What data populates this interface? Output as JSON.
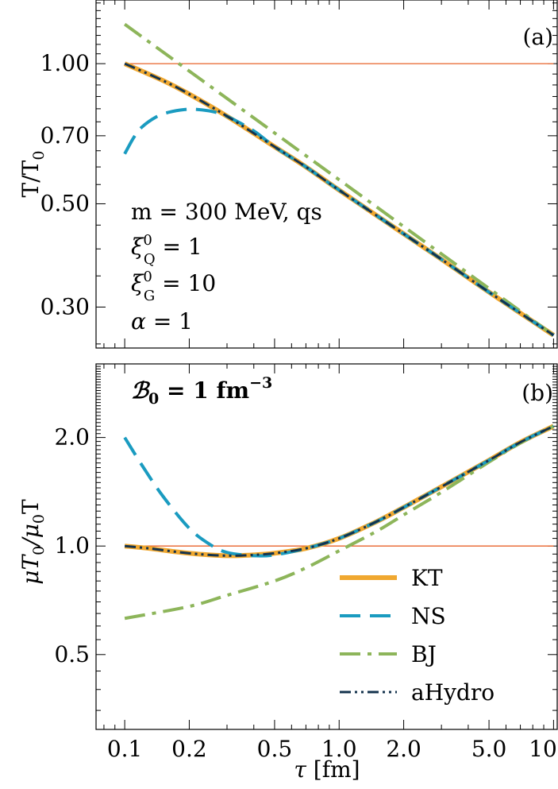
{
  "chart_data": [
    {
      "panel_label": "(a)",
      "type": "line",
      "xscale": "log",
      "yscale": "log",
      "xlim": [
        0.0735,
        10.4
      ],
      "ylim": [
        0.245,
        1.37
      ],
      "xticks": [
        0.1,
        0.2,
        0.5,
        1.0,
        2.0,
        5.0,
        10.0
      ],
      "xtick_labels": [
        "0.1",
        "0.2",
        "0.5",
        "1.0",
        "2.0",
        "5.0",
        "10.0"
      ],
      "yticks": [
        0.3,
        0.5,
        0.7,
        1.0
      ],
      "ytick_labels": [
        "0.30",
        "0.50",
        "0.70",
        "1.00"
      ],
      "ylabel": {
        "main": "T/T",
        "sub": "0"
      },
      "annotations": [
        {
          "text": "m = 300 MeV, qs"
        },
        {
          "base": "ξ",
          "sup": "0",
          "sub": "Q",
          "rest": " = 1"
        },
        {
          "base": "ξ",
          "sup": "0",
          "sub": "G",
          "rest": " = 10"
        },
        {
          "base": "α",
          "rest": " = 1"
        }
      ],
      "reference_line": {
        "y": 1.0,
        "color": "#e8622a"
      },
      "series": [
        {
          "key": "KT",
          "color": "#f0a830",
          "x": [
            0.1,
            0.15,
            0.2,
            0.3,
            0.5,
            0.7,
            1.0,
            2.0,
            3.0,
            5.0,
            10.0
          ],
          "y": [
            1.0,
            0.921,
            0.86,
            0.771,
            0.663,
            0.6,
            0.535,
            0.431,
            0.38,
            0.323,
            0.261
          ]
        },
        {
          "key": "NS",
          "color": "#1a9bc0",
          "x": [
            0.1,
            0.11,
            0.12,
            0.14,
            0.16,
            0.19,
            0.22,
            0.26,
            0.3,
            0.4,
            0.5,
            0.7,
            1.0,
            2.0,
            3.0,
            5.0,
            10.0
          ],
          "y": [
            0.64,
            0.693,
            0.73,
            0.768,
            0.786,
            0.797,
            0.797,
            0.788,
            0.771,
            0.717,
            0.663,
            0.6,
            0.535,
            0.431,
            0.38,
            0.323,
            0.261
          ]
        },
        {
          "key": "BJ",
          "color": "#8db55a",
          "x": [
            0.1,
            10.0
          ],
          "y": [
            1.215,
            0.261
          ]
        },
        {
          "key": "aHydro",
          "color": "#14334d",
          "x": [
            0.1,
            0.15,
            0.2,
            0.3,
            0.5,
            0.7,
            1.0,
            2.0,
            3.0,
            5.0,
            10.0
          ],
          "y": [
            1.0,
            0.921,
            0.86,
            0.771,
            0.663,
            0.6,
            0.535,
            0.431,
            0.38,
            0.323,
            0.261
          ]
        }
      ]
    },
    {
      "panel_label": "(b)",
      "type": "line",
      "xscale": "log",
      "yscale": "log",
      "xlim": [
        0.0735,
        10.4
      ],
      "ylim": [
        0.31,
        3.2
      ],
      "xticks": [
        0.1,
        0.2,
        0.5,
        1.0,
        2.0,
        5.0,
        10.0
      ],
      "xtick_labels": [
        "0.1",
        "0.2",
        "0.5",
        "1.0",
        "2.0",
        "5.0",
        "10.0"
      ],
      "yticks": [
        0.5,
        1.0,
        2.0
      ],
      "ytick_labels": [
        "0.5",
        "1.0",
        "2.0"
      ],
      "xlabel": {
        "main": "τ",
        "rest": " [fm]"
      },
      "ylabel": {
        "a": "μT",
        "a_sub": "0",
        "b": "/μ",
        "b_sub": "0",
        "c": "T"
      },
      "annotation": {
        "script": "ℬ",
        "sub": "0",
        "rest": " = 1 fm",
        "sup": "−3"
      },
      "reference_line": {
        "y": 1.0,
        "color": "#e8622a"
      },
      "legend": {
        "placement": "bottom-right",
        "items": [
          {
            "key": "KT",
            "label": "KT",
            "color": "#f0a830"
          },
          {
            "key": "NS",
            "label": "NS",
            "color": "#1a9bc0"
          },
          {
            "key": "BJ",
            "label": "BJ",
            "color": "#8db55a"
          },
          {
            "key": "aHydro",
            "label": "aHydro",
            "color": "#14334d"
          }
        ]
      },
      "series": [
        {
          "key": "KT",
          "color": "#f0a830",
          "x": [
            0.1,
            0.13,
            0.17,
            0.22,
            0.3,
            0.4,
            0.5,
            0.7,
            1.0,
            1.5,
            2.0,
            3.0,
            5.0,
            7.0,
            10.0
          ],
          "y": [
            1.0,
            0.985,
            0.965,
            0.95,
            0.94,
            0.945,
            0.955,
            0.985,
            1.05,
            1.17,
            1.28,
            1.46,
            1.73,
            1.94,
            2.15
          ]
        },
        {
          "key": "NS",
          "color": "#1a9bc0",
          "x": [
            0.1,
            0.12,
            0.15,
            0.2,
            0.25,
            0.3,
            0.4,
            0.5,
            0.7,
            1.0,
            1.5,
            2.0,
            3.0,
            5.0,
            7.0,
            10.0
          ],
          "y": [
            2.0,
            1.68,
            1.38,
            1.12,
            1.01,
            0.96,
            0.94,
            0.945,
            0.985,
            1.05,
            1.17,
            1.28,
            1.46,
            1.73,
            1.94,
            2.15
          ]
        },
        {
          "key": "BJ",
          "color": "#8db55a",
          "x": [
            0.1,
            0.2,
            0.3,
            0.5,
            0.7,
            1.0,
            1.5,
            2.0,
            3.0,
            5.0,
            7.0,
            10.0
          ],
          "y": [
            0.63,
            0.68,
            0.73,
            0.8,
            0.87,
            0.97,
            1.1,
            1.22,
            1.41,
            1.71,
            1.93,
            2.15
          ]
        },
        {
          "key": "aHydro",
          "color": "#14334d",
          "x": [
            0.1,
            0.13,
            0.17,
            0.22,
            0.3,
            0.4,
            0.5,
            0.7,
            1.0,
            1.5,
            2.0,
            3.0,
            5.0,
            7.0,
            10.0
          ],
          "y": [
            1.0,
            0.985,
            0.965,
            0.95,
            0.94,
            0.945,
            0.955,
            0.985,
            1.05,
            1.17,
            1.28,
            1.46,
            1.73,
            1.94,
            2.15
          ]
        }
      ]
    }
  ],
  "styles": {
    "KT": {
      "dash": "",
      "width": 6
    },
    "NS": {
      "dash": "26 12",
      "width": 4
    },
    "BJ": {
      "dash": "26 9 5 9",
      "width": 4
    },
    "aHydro": {
      "dash": "14 5 3 5 3 5",
      "width": 3
    }
  }
}
